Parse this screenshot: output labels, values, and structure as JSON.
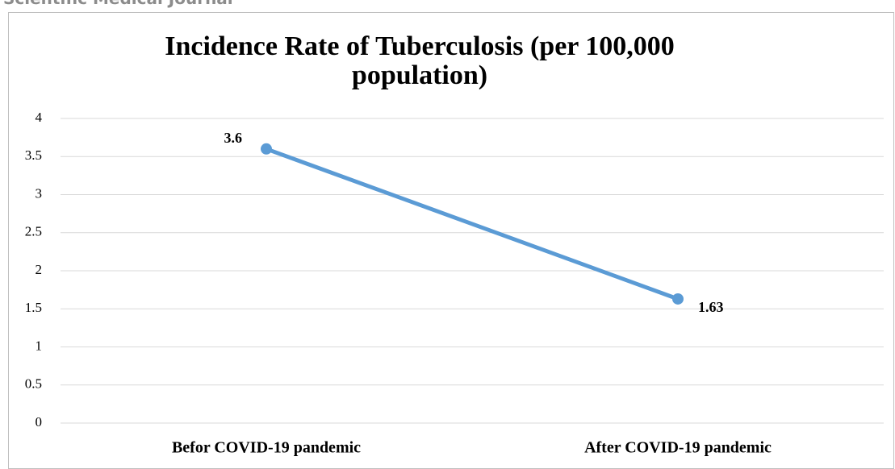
{
  "header": {
    "text": "Scientific Medical Journal"
  },
  "chart_data": {
    "type": "line",
    "title": "Incidence Rate of Tuberculosis (per 100,000 population)",
    "categories": [
      "Befor COVID-19 pandemic",
      "After COVID-19 pandemic"
    ],
    "values": [
      3.6,
      1.63
    ],
    "color": "#5b9bd5",
    "ylim": [
      0,
      4
    ],
    "yticks": [
      0,
      0.5,
      1,
      1.5,
      2,
      2.5,
      3,
      3.5,
      4
    ],
    "grid": true
  }
}
